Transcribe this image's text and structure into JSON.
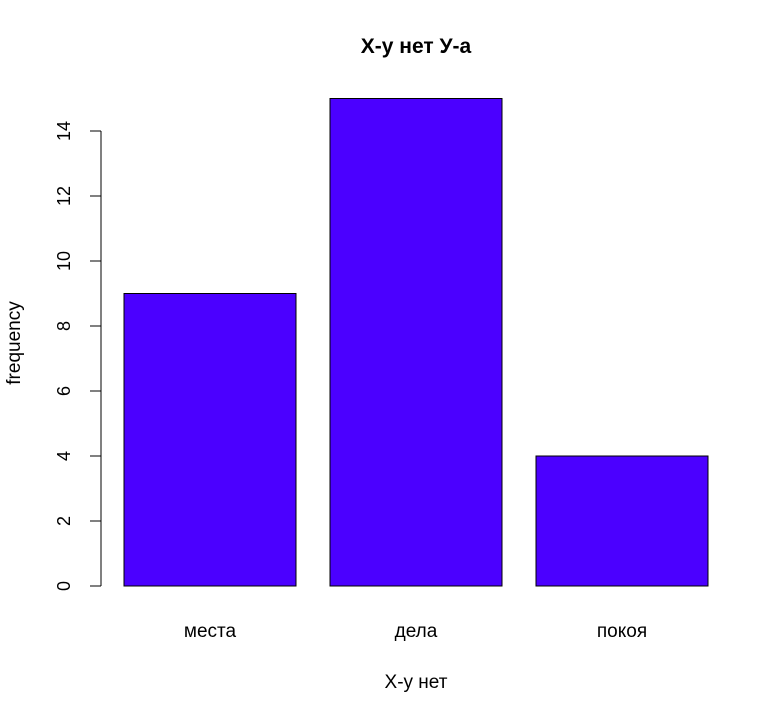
{
  "chart_data": {
    "type": "bar",
    "title": "Х-у нет У-а",
    "xlabel": "Х-у нет",
    "ylabel": "frequency",
    "categories": [
      "места",
      "дела",
      "покоя"
    ],
    "values": [
      9,
      15,
      4
    ],
    "ylim": [
      0,
      15
    ],
    "yticks": [
      0,
      2,
      4,
      6,
      8,
      10,
      12,
      14
    ],
    "bar_color": "#4B00FF",
    "bar_border_color": "#000000",
    "grid": false,
    "legend": "none"
  }
}
